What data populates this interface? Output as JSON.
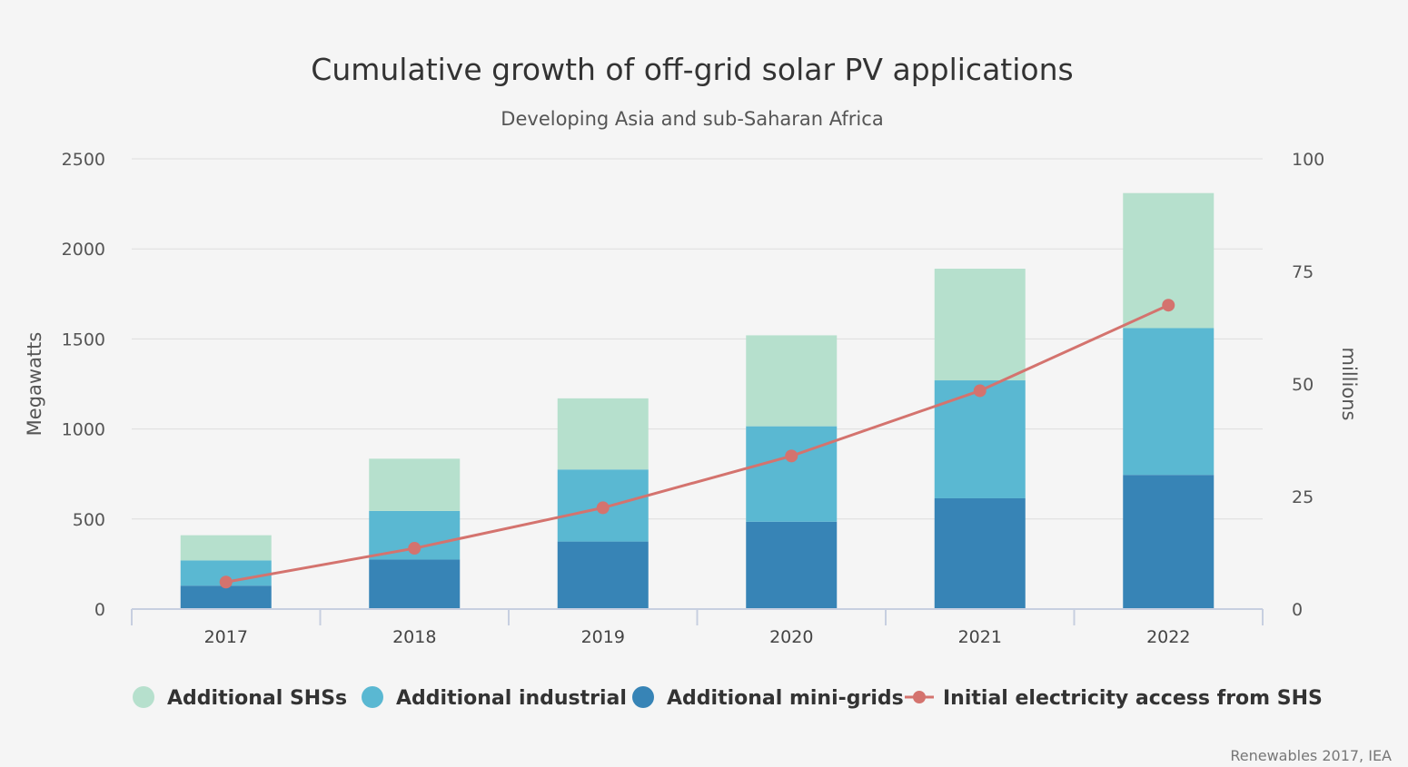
{
  "chart_data": {
    "type": "bar",
    "stacked": true,
    "title": "Cumulative growth of off-grid solar PV applications",
    "subtitle": "Developing Asia and sub-Saharan Africa",
    "categories": [
      "2017",
      "2018",
      "2019",
      "2020",
      "2021",
      "2022"
    ],
    "series": [
      {
        "name": "Additional mini-grids",
        "type": "bar",
        "axis": "left",
        "color": "#3784b6",
        "values": [
          130,
          275,
          375,
          485,
          615,
          745
        ]
      },
      {
        "name": "Additional industrial",
        "type": "bar",
        "axis": "left",
        "color": "#5ab8d2",
        "values": [
          140,
          270,
          400,
          530,
          655,
          815
        ]
      },
      {
        "name": "Additional SHSs",
        "type": "bar",
        "axis": "left",
        "color": "#b6e0cd",
        "values": [
          140,
          290,
          395,
          505,
          620,
          750
        ]
      },
      {
        "name": "Initial electricity access from SHS",
        "type": "line",
        "axis": "right",
        "color": "#d4736e",
        "values": [
          6,
          13.5,
          22.5,
          34,
          48.5,
          67.5
        ]
      }
    ],
    "ylabel": "Megawatts",
    "ylim": [
      0,
      2500
    ],
    "yticks": [
      "0",
      "500",
      "1000",
      "1500",
      "2000",
      "2500"
    ],
    "y2label": "millions",
    "y2lim": [
      0,
      100
    ],
    "y2ticks": [
      "0",
      "25",
      "50",
      "75",
      "100"
    ],
    "legend_order": [
      "Additional SHSs",
      "Additional industrial",
      "Additional mini-grids",
      "Initial electricity access from SHS"
    ],
    "legend_position": "bottom",
    "grid": true
  },
  "source": "Renewables 2017, IEA"
}
